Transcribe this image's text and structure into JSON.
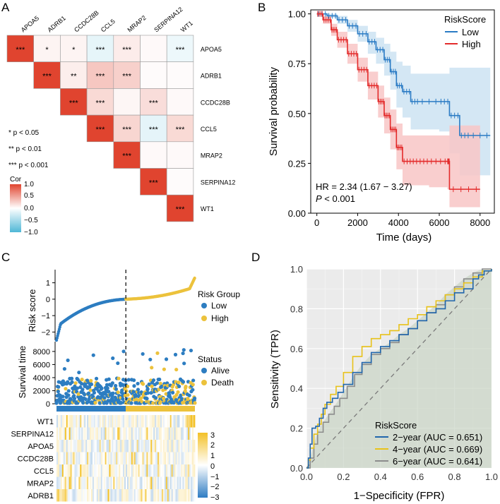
{
  "colors": {
    "red": "#e0442f",
    "low_blue": "#2a7bc4",
    "high_red": "#e32b2b",
    "roc2": "#2166ac",
    "roc4": "#e8c21a",
    "roc6": "#8c8c8c",
    "risk_low": "#2d7dc1",
    "risk_high": "#ecc23c",
    "heat_pos": "#f3c127",
    "heat_neg": "#2f7cc3"
  },
  "panel_a": {
    "label": "A",
    "genes": [
      "APOA5",
      "ADRB1",
      "CCDC28B",
      "CCL5",
      "MRAP2",
      "SERPINA12",
      "WT1"
    ],
    "cells": [
      {
        "r": 0,
        "c": 0,
        "v": 1.0,
        "sig": "***"
      },
      {
        "r": 0,
        "c": 1,
        "v": 0.06,
        "sig": "*"
      },
      {
        "r": 0,
        "c": 2,
        "v": 0.06,
        "sig": "*"
      },
      {
        "r": 0,
        "c": 3,
        "v": -0.14,
        "sig": "***"
      },
      {
        "r": 0,
        "c": 4,
        "v": 0.1,
        "sig": "***"
      },
      {
        "r": 0,
        "c": 5,
        "v": 0.03,
        "sig": ""
      },
      {
        "r": 0,
        "c": 6,
        "v": -0.1,
        "sig": "***"
      },
      {
        "r": 1,
        "c": 1,
        "v": 1.0,
        "sig": "***"
      },
      {
        "r": 1,
        "c": 2,
        "v": 0.09,
        "sig": "**"
      },
      {
        "r": 1,
        "c": 3,
        "v": 0.3,
        "sig": "***"
      },
      {
        "r": 1,
        "c": 4,
        "v": 0.25,
        "sig": "***"
      },
      {
        "r": 1,
        "c": 5,
        "v": 0.02,
        "sig": ""
      },
      {
        "r": 1,
        "c": 6,
        "v": 0.02,
        "sig": ""
      },
      {
        "r": 2,
        "c": 2,
        "v": 1.0,
        "sig": "***"
      },
      {
        "r": 2,
        "c": 3,
        "v": 0.2,
        "sig": "***"
      },
      {
        "r": 2,
        "c": 4,
        "v": 0.05,
        "sig": ""
      },
      {
        "r": 2,
        "c": 5,
        "v": 0.18,
        "sig": "***"
      },
      {
        "r": 2,
        "c": 6,
        "v": 0.03,
        "sig": ""
      },
      {
        "r": 3,
        "c": 3,
        "v": 1.0,
        "sig": "***"
      },
      {
        "r": 3,
        "c": 4,
        "v": 0.22,
        "sig": "***"
      },
      {
        "r": 3,
        "c": 5,
        "v": -0.15,
        "sig": "***"
      },
      {
        "r": 3,
        "c": 6,
        "v": 0.2,
        "sig": "***"
      },
      {
        "r": 4,
        "c": 4,
        "v": 1.0,
        "sig": "***"
      },
      {
        "r": 4,
        "c": 5,
        "v": 0.03,
        "sig": ""
      },
      {
        "r": 4,
        "c": 6,
        "v": 0.03,
        "sig": ""
      },
      {
        "r": 5,
        "c": 5,
        "v": 1.0,
        "sig": "***"
      },
      {
        "r": 5,
        "c": 6,
        "v": 0.02,
        "sig": ""
      },
      {
        "r": 6,
        "c": 6,
        "v": 1.0,
        "sig": "***"
      }
    ],
    "sig_legend": [
      "* p < 0.05",
      "** p < 0.01",
      "*** p < 0.001"
    ],
    "cor_title": "Cor",
    "cor_ticks": [
      "1.0",
      "0.5",
      "0.0",
      "−0.5",
      "−1.0"
    ]
  },
  "chart_data": [
    {
      "type": "line",
      "panel": "B",
      "title": "RiskScore",
      "xlabel": "Time (days)",
      "ylabel": "Survival probability",
      "xlim": [
        -300,
        8700
      ],
      "ylim": [
        0,
        1.02
      ],
      "xticks": [
        0,
        2000,
        4000,
        6000,
        8000
      ],
      "yticks": [
        0.0,
        0.25,
        0.5,
        0.75,
        1.0
      ],
      "ytick_labels": [
        "0.00",
        "0.25",
        "0.50",
        "0.75",
        "1.00"
      ],
      "series": [
        {
          "name": "Low",
          "x": [
            0,
            500,
            1000,
            1500,
            2000,
            2500,
            2900,
            3300,
            3600,
            3900,
            4200,
            4600,
            5000,
            6000,
            6500,
            7000,
            7500,
            8500
          ],
          "y": [
            1.0,
            0.99,
            0.97,
            0.94,
            0.9,
            0.86,
            0.82,
            0.77,
            0.71,
            0.64,
            0.61,
            0.56,
            0.56,
            0.56,
            0.49,
            0.39,
            0.39,
            0.39
          ],
          "lower": [
            1.0,
            0.98,
            0.95,
            0.91,
            0.86,
            0.8,
            0.75,
            0.69,
            0.62,
            0.53,
            0.48,
            0.42,
            0.42,
            0.41,
            0.3,
            0.19,
            0.19,
            0.19
          ],
          "upper": [
            1.0,
            1.0,
            0.99,
            0.97,
            0.94,
            0.91,
            0.88,
            0.85,
            0.81,
            0.76,
            0.74,
            0.7,
            0.7,
            0.7,
            0.73,
            0.73,
            0.73,
            0.73
          ]
        },
        {
          "name": "High",
          "x": [
            0,
            300,
            700,
            1000,
            1500,
            2000,
            2500,
            3000,
            3300,
            3600,
            3900,
            4200,
            4800,
            5500,
            6400,
            6500,
            8000
          ],
          "y": [
            1.0,
            0.97,
            0.92,
            0.87,
            0.8,
            0.72,
            0.64,
            0.56,
            0.49,
            0.42,
            0.33,
            0.26,
            0.26,
            0.26,
            0.26,
            0.12,
            0.12
          ],
          "lower": [
            1.0,
            0.95,
            0.89,
            0.83,
            0.75,
            0.66,
            0.57,
            0.48,
            0.4,
            0.32,
            0.22,
            0.14,
            0.14,
            0.13,
            0.12,
            0.03,
            0.03
          ],
          "upper": [
            1.0,
            0.99,
            0.95,
            0.91,
            0.85,
            0.78,
            0.71,
            0.64,
            0.58,
            0.52,
            0.45,
            0.39,
            0.39,
            0.39,
            0.39,
            0.44,
            0.44
          ]
        }
      ],
      "annotation_hr": "HR = 2.34 (1.67 − 3.27)",
      "annotation_p_italic": "P",
      "annotation_p_rest": " < 0.001"
    },
    {
      "type": "scatter",
      "panel": "C",
      "risk_ylabel": "Risk score",
      "risk_yticks": [
        -2,
        -1,
        0,
        1
      ],
      "risk_ytick_labels": [
        "−2",
        "−1",
        "0",
        "1"
      ],
      "risk_legend_title": "Risk Group",
      "risk_groups": [
        "Low",
        "High"
      ],
      "surv_ylabel": "Survival time",
      "surv_yticks": [
        0,
        2000,
        4000,
        6000,
        8000
      ],
      "surv_legend_title": "Status",
      "statuses": [
        "Alive",
        "Death"
      ],
      "heatmap_genes": [
        "WT1",
        "SERPINA12",
        "APOA5",
        "CCDC28B",
        "CCL5",
        "MRAP2",
        "ADRB1"
      ],
      "heat_ticks": [
        "3",
        "2",
        "1",
        "0",
        "−1",
        "−2",
        "−3"
      ]
    },
    {
      "type": "line",
      "panel": "D",
      "xlabel": "1−Specificity (FPR)",
      "ylabel": "Sensitivity (TPR)",
      "xlim": [
        0,
        1
      ],
      "ylim": [
        0,
        1
      ],
      "xticks": [
        0.0,
        0.2,
        0.4,
        0.6,
        0.8,
        1.0
      ],
      "yticks": [
        0.0,
        0.2,
        0.4,
        0.6,
        0.8,
        1.0
      ],
      "tick_labels": [
        "0.0",
        "0.2",
        "0.4",
        "0.6",
        "0.8",
        "1.0"
      ],
      "legend_title": "RiskScore",
      "series": [
        {
          "name": "2−year (AUC = 0.651)",
          "x": [
            0,
            0.01,
            0.02,
            0.03,
            0.05,
            0.07,
            0.09,
            0.11,
            0.14,
            0.17,
            0.2,
            0.25,
            0.3,
            0.35,
            0.4,
            0.45,
            0.5,
            0.55,
            0.6,
            0.65,
            0.7,
            0.75,
            0.8,
            0.85,
            0.9,
            0.93,
            0.96,
            1.0
          ],
          "y": [
            0,
            0.05,
            0.12,
            0.2,
            0.21,
            0.25,
            0.3,
            0.33,
            0.35,
            0.38,
            0.42,
            0.48,
            0.53,
            0.58,
            0.61,
            0.64,
            0.67,
            0.7,
            0.74,
            0.78,
            0.8,
            0.84,
            0.88,
            0.9,
            0.95,
            0.97,
            0.99,
            1.0
          ]
        },
        {
          "name": "4−year (AUC = 0.669)",
          "x": [
            0,
            0.01,
            0.02,
            0.04,
            0.06,
            0.08,
            0.1,
            0.13,
            0.16,
            0.2,
            0.25,
            0.3,
            0.35,
            0.4,
            0.45,
            0.5,
            0.55,
            0.6,
            0.65,
            0.7,
            0.75,
            0.8,
            0.85,
            0.9,
            0.95,
            1.0
          ],
          "y": [
            0,
            0.04,
            0.1,
            0.17,
            0.22,
            0.27,
            0.32,
            0.37,
            0.41,
            0.48,
            0.56,
            0.61,
            0.65,
            0.67,
            0.69,
            0.72,
            0.75,
            0.77,
            0.81,
            0.84,
            0.87,
            0.9,
            0.93,
            0.96,
            0.99,
            1.0
          ]
        },
        {
          "name": "6−year (AUC = 0.641)",
          "x": [
            0,
            0.02,
            0.04,
            0.06,
            0.09,
            0.12,
            0.15,
            0.18,
            0.22,
            0.26,
            0.3,
            0.35,
            0.4,
            0.45,
            0.5,
            0.55,
            0.6,
            0.65,
            0.7,
            0.75,
            0.8,
            0.85,
            0.9,
            0.95,
            1.0
          ],
          "y": [
            0,
            0.05,
            0.12,
            0.18,
            0.23,
            0.27,
            0.31,
            0.35,
            0.41,
            0.47,
            0.52,
            0.57,
            0.6,
            0.63,
            0.67,
            0.7,
            0.74,
            0.78,
            0.82,
            0.87,
            0.91,
            0.95,
            0.98,
            1.0,
            1.0
          ]
        }
      ]
    }
  ],
  "panel_labels": {
    "b": "B",
    "c": "C",
    "d": "D"
  }
}
